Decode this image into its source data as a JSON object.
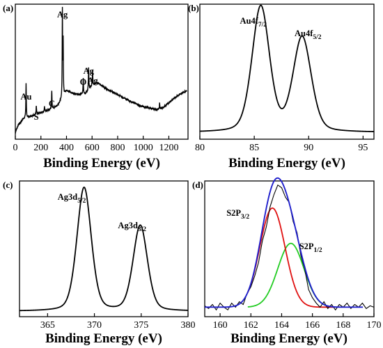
{
  "panels": [
    {
      "id": "a",
      "label": "(a)",
      "xlabel": "Binding Energy (eV)",
      "xlim": [
        0,
        1350
      ],
      "xticks": [
        0,
        200,
        400,
        600,
        800,
        1000,
        1200
      ],
      "line_color": "#000000",
      "annotations": [
        {
          "text": "Au",
          "sub": "",
          "tail": "",
          "x": 84
        },
        {
          "text": "S",
          "sub": "",
          "tail": "",
          "x": 164
        },
        {
          "text": "C",
          "sub": "",
          "tail": "",
          "x": 285
        },
        {
          "text": "Ag",
          "sub": "",
          "tail": "",
          "x": 368
        },
        {
          "text": "O",
          "sub": "",
          "tail": "",
          "x": 531
        },
        {
          "text": "Ag",
          "sub": "",
          "tail": "",
          "x": 573
        },
        {
          "text": "Ag",
          "sub": "",
          "tail": "",
          "x": 604
        }
      ]
    },
    {
      "id": "b",
      "label": "(b)",
      "xlabel": "Binding Energy (eV)",
      "xlim": [
        80,
        96
      ],
      "xticks": [
        80,
        85,
        90,
        95
      ],
      "line_color": "#000000",
      "annotations": [
        {
          "text": "Au4f",
          "sub": "7/2",
          "tail": "",
          "x": 85.6
        },
        {
          "text": "Au4f",
          "sub": "5/2",
          "tail": "",
          "x": 89.6
        }
      ]
    },
    {
      "id": "c",
      "label": "(c)",
      "xlabel": "Binding Energy (eV)",
      "xlim": [
        362,
        380
      ],
      "xticks": [
        365,
        370,
        375,
        380
      ],
      "line_color": "#000000",
      "annotations": [
        {
          "text": "Ag3d",
          "sub": "5/2",
          "tail": "",
          "x": 368.9
        },
        {
          "text": "Ag3d",
          "sub": "3/2",
          "tail": "",
          "x": 374.9
        }
      ]
    },
    {
      "id": "d",
      "label": "(d)",
      "xlabel": "Binding Energy (eV)",
      "xlim": [
        159,
        170
      ],
      "xticks": [
        160,
        162,
        164,
        166,
        168,
        170
      ],
      "colors": {
        "raw": "#000000",
        "envelope": "#1f1fcc",
        "s2p32": "#e01010",
        "s2p12": "#22cc22"
      },
      "annotations": [
        {
          "text": "S2P",
          "sub": "3/2",
          "tail": "",
          "x": 163.4
        },
        {
          "text": "S2P",
          "sub": "1/2",
          "tail": "",
          "x": 164.6
        }
      ]
    }
  ],
  "chart_data": [
    {
      "type": "line",
      "panel": "a",
      "xlabel": "Binding Energy (eV)",
      "xlim": [
        0,
        1350
      ],
      "baseline": {
        "x": [
          0,
          20,
          60,
          120,
          180,
          240,
          300,
          340,
          360,
          400,
          450,
          500,
          550,
          600,
          640,
          700,
          800,
          900,
          1000,
          1100,
          1150,
          1200,
          1250,
          1300,
          1340
        ],
        "y": [
          0.05,
          0.1,
          0.15,
          0.17,
          0.19,
          0.21,
          0.23,
          0.26,
          0.3,
          0.36,
          0.34,
          0.33,
          0.34,
          0.4,
          0.42,
          0.38,
          0.33,
          0.28,
          0.24,
          0.22,
          0.23,
          0.27,
          0.31,
          0.34,
          0.36
        ]
      },
      "peaks": [
        {
          "x": 84,
          "height": 0.26,
          "width": 4
        },
        {
          "x": 164,
          "height": 0.06,
          "width": 4
        },
        {
          "x": 228,
          "height": 0.04,
          "width": 4
        },
        {
          "x": 285,
          "height": 0.13,
          "width": 4
        },
        {
          "x": 368,
          "height": 0.66,
          "width": 3.5
        },
        {
          "x": 374,
          "height": 0.4,
          "width": 3.5
        },
        {
          "x": 531,
          "height": 0.12,
          "width": 4
        },
        {
          "x": 573,
          "height": 0.16,
          "width": 4
        },
        {
          "x": 604,
          "height": 0.11,
          "width": 4
        },
        {
          "x": 1128,
          "height": 0.04,
          "width": 4
        }
      ]
    },
    {
      "type": "line",
      "panel": "b",
      "xlabel": "Binding Energy (eV)",
      "xlim": [
        80,
        96
      ],
      "baseline": 0.05,
      "peaks": [
        {
          "name": "Au4f7/2",
          "x": 85.6,
          "height": 0.93,
          "sigma": 0.82
        },
        {
          "name": "Au4f5/2",
          "x": 89.4,
          "height": 0.7,
          "sigma": 0.85
        }
      ]
    },
    {
      "type": "line",
      "panel": "c",
      "xlabel": "Binding Energy (eV)",
      "xlim": [
        362,
        380
      ],
      "baseline": 0.04,
      "peaks": [
        {
          "name": "Ag3d5/2",
          "x": 368.9,
          "height": 0.91,
          "sigma": 0.78
        },
        {
          "name": "Ag3d3/2",
          "x": 374.9,
          "height": 0.63,
          "sigma": 0.78
        }
      ]
    },
    {
      "type": "line",
      "panel": "d",
      "xlabel": "Binding Energy (eV)",
      "xlim": [
        159,
        170
      ],
      "baseline": 0.07,
      "components": [
        {
          "name": "S2P3/2",
          "x": 163.4,
          "height": 0.73,
          "sigma": 0.82
        },
        {
          "name": "S2P1/2",
          "x": 164.6,
          "height": 0.47,
          "sigma": 0.85
        }
      ],
      "raw": {
        "x": [
          159.0,
          159.25,
          159.5,
          159.75,
          160.0,
          160.25,
          160.5,
          160.75,
          161.0,
          161.25,
          161.5,
          161.75,
          162.0,
          162.25,
          162.5,
          162.75,
          163.0,
          163.25,
          163.5,
          163.75,
          164.0,
          164.25,
          164.5,
          164.75,
          165.0,
          165.25,
          165.5,
          165.75,
          166.0,
          166.25,
          166.5,
          166.75,
          167.0,
          167.25,
          167.5,
          167.75,
          168.0,
          168.25,
          168.5,
          168.75,
          169.0,
          169.25,
          169.5,
          169.75,
          170.0
        ],
        "y": [
          0.08,
          0.06,
          0.09,
          0.05,
          0.1,
          0.07,
          0.05,
          0.1,
          0.07,
          0.11,
          0.09,
          0.17,
          0.22,
          0.3,
          0.4,
          0.56,
          0.66,
          0.81,
          0.9,
          0.97,
          0.95,
          0.88,
          0.84,
          0.7,
          0.62,
          0.45,
          0.35,
          0.2,
          0.14,
          0.1,
          0.07,
          0.11,
          0.06,
          0.09,
          0.05,
          0.09,
          0.07,
          0.1,
          0.06,
          0.09,
          0.07,
          0.1,
          0.06,
          0.08,
          0.07
        ]
      }
    }
  ]
}
